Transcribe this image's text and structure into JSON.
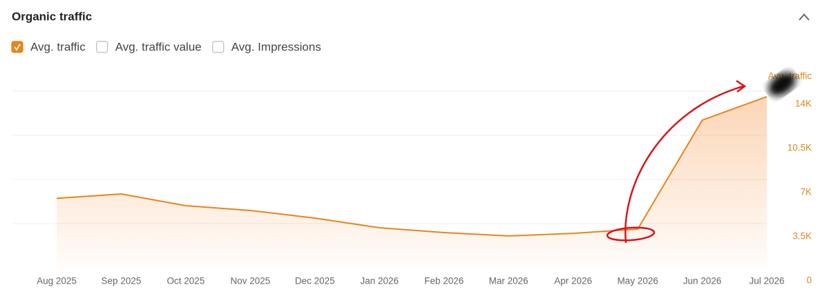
{
  "chart_data": {
    "type": "area-line",
    "title": "Organic traffic",
    "toggles": [
      {
        "label": "Avg. traffic",
        "checked": true
      },
      {
        "label": "Avg. traffic value",
        "checked": false
      },
      {
        "label": "Avg. Impressions",
        "checked": false
      }
    ],
    "categories": [
      "Aug 2025",
      "Sep 2025",
      "Oct 2025",
      "Nov 2025",
      "Dec 2025",
      "Jan 2026",
      "Feb 2026",
      "Mar 2026",
      "Apr 2026",
      "May 2026",
      "Jun 2026",
      "Jul 2026"
    ],
    "series": [
      {
        "name": "Avg. traffic",
        "color": "#e8841a",
        "values": [
          5500,
          5850,
          4920,
          4540,
          3940,
          3170,
          2790,
          2520,
          2730,
          3060,
          11700,
          13560
        ]
      }
    ],
    "ylim": [
      0,
      14000
    ],
    "yticks": [
      0,
      {
        "value": 3500,
        "label": "3.5K"
      },
      {
        "value": 7000,
        "label": "7K"
      },
      {
        "value": 10500,
        "label": "10.5K"
      },
      {
        "value": 14000,
        "label": "14K"
      }
    ],
    "grid": true
  }
}
